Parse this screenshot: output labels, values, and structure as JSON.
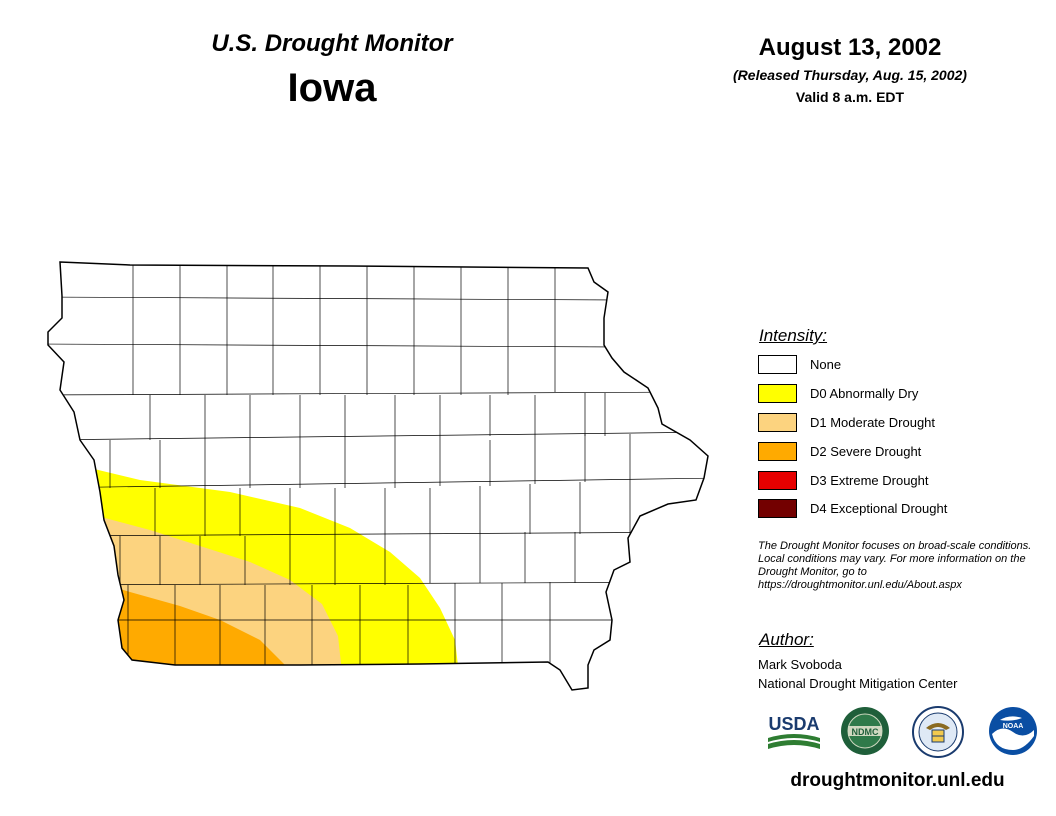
{
  "header": {
    "monitor_title": "U.S. Drought Monitor",
    "state": "Iowa",
    "date": "August 13, 2002",
    "released": "(Released Thursday, Aug. 15, 2002)",
    "valid": "Valid 8 a.m. EDT"
  },
  "legend": {
    "title": "Intensity:",
    "items": [
      {
        "label": "None",
        "color": "#ffffff"
      },
      {
        "label": "D0 Abnormally Dry",
        "color": "#ffff00"
      },
      {
        "label": "D1 Moderate Drought",
        "color": "#fcd37f"
      },
      {
        "label": "D2 Severe Drought",
        "color": "#ffaa00"
      },
      {
        "label": "D3 Extreme Drought",
        "color": "#e60000"
      },
      {
        "label": "D4 Exceptional Drought",
        "color": "#730000"
      }
    ]
  },
  "note": "The Drought Monitor focuses on broad-scale conditions. Local conditions may vary. For more information on the Drought Monitor, go to https://droughtmonitor.unl.edu/About.aspx",
  "author": {
    "title": "Author:",
    "name": "Mark Svoboda",
    "org": "National Drought Mitigation Center"
  },
  "logos": {
    "usda": "USDA",
    "ndmc": "NDMC",
    "commerce": "commerce-seal-icon",
    "noaa": "NOAA"
  },
  "website": "droughtmonitor.unl.edu"
}
